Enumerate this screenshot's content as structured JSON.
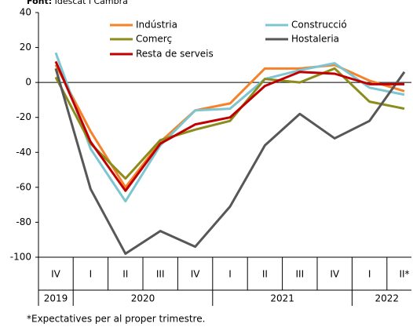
{
  "chart_data": {
    "type": "line",
    "source_label": "Font:",
    "source": "Idescat i Cambra",
    "categories": [
      "IV",
      "I",
      "II",
      "III",
      "IV",
      "I",
      "II",
      "III",
      "IV",
      "I",
      "II*"
    ],
    "years": [
      "2019",
      "2020",
      "2021",
      "2022"
    ],
    "series": [
      {
        "name": "Indústria",
        "color": "#f5822a",
        "values": [
          10,
          -28,
          -60,
          -34,
          -16,
          -12,
          8,
          8,
          10,
          1,
          -5
        ]
      },
      {
        "name": "Construcció",
        "color": "#7dc5d1",
        "values": [
          17,
          -38,
          -68,
          -36,
          -16,
          -15,
          2,
          7,
          11,
          -3,
          -7
        ]
      },
      {
        "name": "Comerç",
        "color": "#8c8c1c",
        "values": [
          3,
          -35,
          -55,
          -33,
          -27,
          -22,
          2,
          0,
          8,
          -11,
          -15
        ]
      },
      {
        "name": "Hostaleria",
        "color": "#575757",
        "values": [
          8,
          -61,
          -98,
          -85,
          -94,
          -71,
          -36,
          -18,
          -32,
          -22,
          6
        ]
      },
      {
        "name": "Resta de serveis",
        "color": "#c00000",
        "values": [
          12,
          -34,
          -62,
          -35,
          -24,
          -20,
          -2,
          6,
          5,
          -1,
          -1
        ]
      }
    ],
    "ylim": [
      -100,
      40
    ],
    "yticks": [
      -100,
      -80,
      -60,
      -40,
      -20,
      0,
      20,
      40
    ],
    "footnote": "*Expectatives per al proper trimestre."
  }
}
